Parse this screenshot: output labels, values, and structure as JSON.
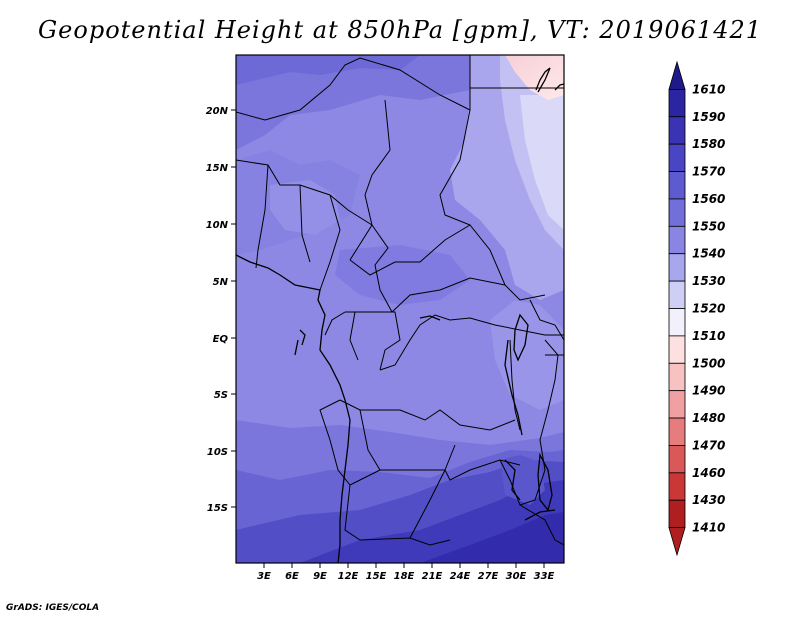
{
  "title": "Geopotential Height at 850hPa [gpm], VT: 2019061421",
  "credit": "GrADS: IGES/COLA",
  "map": {
    "lat_labels": [
      "20N",
      "15N",
      "10N",
      "5N",
      "EQ",
      "5S",
      "10S",
      "15S"
    ],
    "lon_labels": [
      "3E",
      "6E",
      "9E",
      "12E",
      "15E",
      "18E",
      "21E",
      "24E",
      "27E",
      "30E",
      "33E"
    ]
  },
  "colorbar": {
    "levels": [
      "1610",
      "1590",
      "1580",
      "1570",
      "1560",
      "1550",
      "1540",
      "1530",
      "1520",
      "1510",
      "1500",
      "1490",
      "1480",
      "1470",
      "1460",
      "1430",
      "1410"
    ],
    "colors": [
      "#1f1a8a",
      "#2b25a3",
      "#3a34b5",
      "#4a45c4",
      "#5e5acf",
      "#716fd9",
      "#8985e3",
      "#a8a6ec",
      "#cfcff5",
      "#f1f0fb",
      "#fde0e0",
      "#f8c2c2",
      "#f0a0a0",
      "#e67c7c",
      "#db5858",
      "#c93737",
      "#b01f1f"
    ]
  }
}
